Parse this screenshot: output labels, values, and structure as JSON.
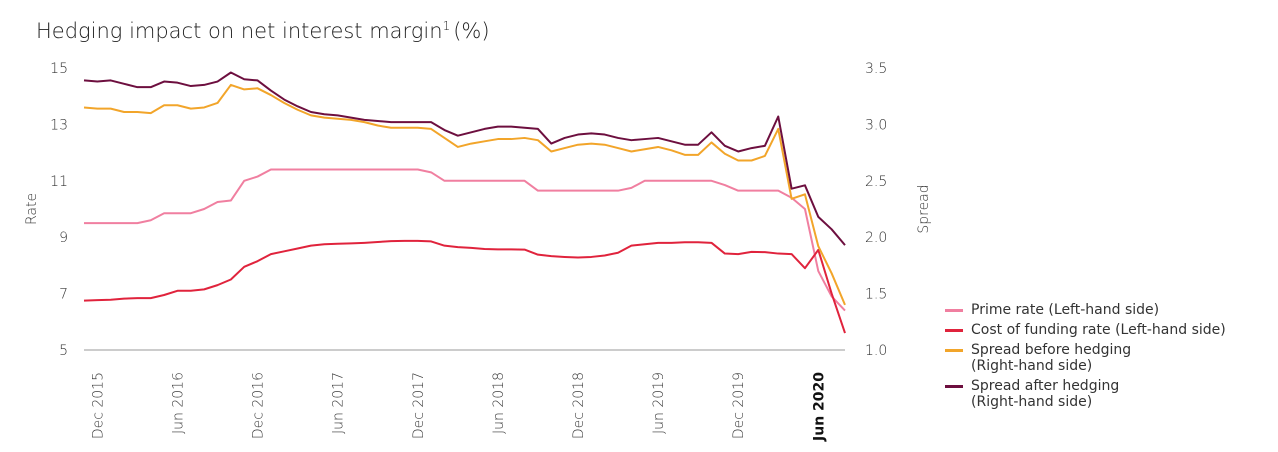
{
  "chart_data": {
    "type": "line",
    "title": "Hedging impact on net interest margin",
    "title_superscript": "1",
    "title_suffix": "(%)",
    "ylabel": "Rate",
    "y2label": "Spread",
    "categories": [
      null,
      "Dec 2015",
      null,
      null,
      null,
      null,
      null,
      "Jun 2016",
      null,
      null,
      null,
      null,
      null,
      "Dec 2016",
      null,
      null,
      null,
      null,
      null,
      "Jun 2017",
      null,
      null,
      null,
      null,
      null,
      "Dec 2017",
      null,
      null,
      null,
      null,
      null,
      "Jun 2018",
      null,
      null,
      null,
      null,
      null,
      "Dec 2018",
      null,
      null,
      null,
      null,
      null,
      "Jun 2019",
      null,
      null,
      null,
      null,
      null,
      "Dec 2019",
      null,
      null,
      null,
      null,
      null,
      "Jun 2020",
      null,
      null
    ],
    "bold_category_index": 55,
    "ylim": [
      5,
      15
    ],
    "yticks": [
      5,
      7,
      9,
      11,
      13,
      15
    ],
    "y2lim": [
      1.0,
      3.5
    ],
    "y2ticks": [
      {
        "value": 1.0,
        "label": "1.0"
      },
      {
        "value": 1.5,
        "label": "1.5"
      },
      {
        "value": 2.0,
        "label": "2.0"
      },
      {
        "value": 2.5,
        "label": "2.5"
      },
      {
        "value": 3.0,
        "label": "3.0"
      },
      {
        "value": 3.5,
        "label": "3.5"
      }
    ],
    "grid": false,
    "legend": "right",
    "series": [
      {
        "name": "Prime rate (Left-hand side)",
        "color": "#f07fa0",
        "axis": "y",
        "values": [
          9.5,
          9.5,
          9.5,
          9.5,
          9.5,
          9.6,
          9.85,
          9.85,
          9.85,
          10.0,
          10.25,
          10.3,
          11.0,
          11.15,
          11.4,
          11.4,
          11.4,
          11.4,
          11.4,
          11.4,
          11.4,
          11.4,
          11.4,
          11.4,
          11.4,
          11.4,
          11.3,
          11.0,
          11.0,
          11.0,
          11.0,
          11.0,
          11.0,
          11.0,
          10.65,
          10.65,
          10.65,
          10.65,
          10.65,
          10.65,
          10.65,
          10.75,
          11.0,
          11.0,
          11.0,
          11.0,
          11.0,
          11.0,
          10.85,
          10.65,
          10.65,
          10.65,
          10.65,
          10.4,
          10.0,
          7.8,
          6.9,
          6.4
        ]
      },
      {
        "name": "Cost of funding rate (Left-hand side)",
        "color": "#e0233c",
        "axis": "y",
        "values": [
          6.75,
          6.77,
          6.78,
          6.82,
          6.84,
          6.84,
          6.95,
          7.1,
          7.1,
          7.15,
          7.3,
          7.5,
          7.95,
          8.15,
          8.4,
          8.5,
          8.6,
          8.7,
          8.75,
          8.77,
          8.78,
          8.8,
          8.83,
          8.86,
          8.87,
          8.87,
          8.85,
          8.7,
          8.65,
          8.62,
          8.58,
          8.57,
          8.57,
          8.56,
          8.38,
          8.33,
          8.3,
          8.28,
          8.3,
          8.35,
          8.45,
          8.7,
          8.75,
          8.8,
          8.8,
          8.82,
          8.82,
          8.8,
          8.42,
          8.4,
          8.48,
          8.47,
          8.42,
          8.4,
          7.9,
          8.55,
          7.0,
          5.6
        ]
      },
      {
        "name": "Spread before hedging (Right-hand side)",
        "color": "#f2a52a",
        "axis": "y2",
        "values": [
          3.15,
          3.14,
          3.14,
          3.11,
          3.11,
          3.1,
          3.17,
          3.17,
          3.14,
          3.15,
          3.19,
          3.35,
          3.31,
          3.32,
          3.26,
          3.19,
          3.13,
          3.08,
          3.06,
          3.05,
          3.04,
          3.02,
          2.99,
          2.97,
          2.97,
          2.97,
          2.96,
          2.88,
          2.8,
          2.83,
          2.85,
          2.87,
          2.87,
          2.88,
          2.86,
          2.76,
          2.79,
          2.82,
          2.83,
          2.82,
          2.79,
          2.76,
          2.78,
          2.8,
          2.77,
          2.73,
          2.73,
          2.84,
          2.74,
          2.68,
          2.68,
          2.72,
          2.96,
          2.34,
          2.38,
          1.92,
          1.68,
          1.4
        ]
      },
      {
        "name": "Spread after hedging (Right-hand side)",
        "color": "#6d0f3f",
        "axis": "y2",
        "values": [
          3.39,
          3.38,
          3.39,
          3.36,
          3.33,
          3.33,
          3.38,
          3.37,
          3.34,
          3.35,
          3.38,
          3.46,
          3.4,
          3.39,
          3.3,
          3.22,
          3.16,
          3.11,
          3.09,
          3.08,
          3.06,
          3.04,
          3.03,
          3.02,
          3.02,
          3.02,
          3.02,
          2.95,
          2.9,
          2.93,
          2.96,
          2.98,
          2.98,
          2.97,
          2.96,
          2.83,
          2.88,
          2.91,
          2.92,
          2.91,
          2.88,
          2.86,
          2.87,
          2.88,
          2.85,
          2.82,
          2.82,
          2.93,
          2.81,
          2.76,
          2.79,
          2.81,
          3.07,
          2.43,
          2.46,
          2.18,
          2.07,
          1.93
        ]
      }
    ]
  }
}
